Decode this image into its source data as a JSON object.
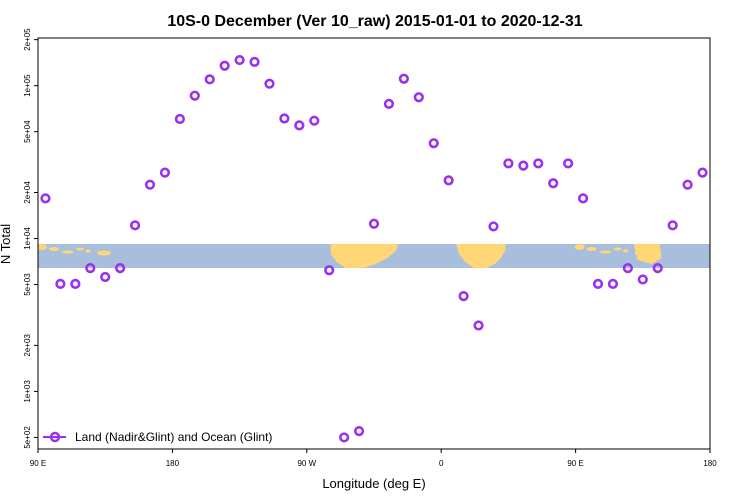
{
  "chart_data": {
    "type": "scatter",
    "title": "10S-0 December (Ver 10_raw)   2015-01-01 to 2020-12-31",
    "xlabel": "Longitude (deg E)",
    "ylabel": "N Total",
    "y_scale": "log",
    "grid": false,
    "legend_placement": "bottom-left",
    "xlim": [
      90,
      540
    ],
    "ylim": [
      420,
      205000
    ],
    "x_ticks": [
      {
        "value": 90,
        "label": "90 E"
      },
      {
        "value": 180,
        "label": "180"
      },
      {
        "value": 270,
        "label": "90 W"
      },
      {
        "value": 360,
        "label": "0"
      },
      {
        "value": 450,
        "label": "90 E"
      },
      {
        "value": 540,
        "label": "180"
      }
    ],
    "y_ticks": [
      {
        "value": 500,
        "label": "5e+02"
      },
      {
        "value": 1000,
        "label": "1e+03"
      },
      {
        "value": 2000,
        "label": "2e+03"
      },
      {
        "value": 5000,
        "label": "5e+03"
      },
      {
        "value": 10000,
        "label": "1e+04"
      },
      {
        "value": 20000,
        "label": "2e+04"
      },
      {
        "value": 50000,
        "label": "5e+04"
      },
      {
        "value": 100000,
        "label": "1e+05"
      },
      {
        "value": 200000,
        "label": "2e+05"
      }
    ],
    "series": [
      {
        "name": "Land (Nadir&Glint) and Ocean (Glint)",
        "color": "#9b30f0",
        "marker": "open-circle",
        "x": [
          95,
          105,
          115,
          125,
          135,
          145,
          155,
          165,
          175,
          185,
          195,
          205,
          215,
          225,
          235,
          245,
          255,
          265,
          275,
          285,
          295,
          305,
          315,
          325,
          335,
          345,
          355,
          365,
          375,
          385,
          395,
          405,
          415,
          425,
          435,
          445,
          455,
          465,
          475,
          485,
          495,
          505,
          515,
          525,
          535
        ],
        "y": [
          18300,
          5050,
          5050,
          6400,
          5600,
          6400,
          12200,
          22500,
          27000,
          60500,
          86000,
          110000,
          135000,
          147000,
          143000,
          103000,
          61000,
          55000,
          59000,
          6200,
          500,
          550,
          12500,
          76000,
          111000,
          84000,
          42000,
          24000,
          4200,
          2700,
          12000,
          31000,
          30000,
          31000,
          23000,
          31000,
          18300,
          5050,
          5050,
          6400,
          5400,
          6400,
          12200,
          22500,
          27000
        ]
      }
    ],
    "map_band": {
      "ocean_color": "#a7bedc",
      "land_color": "#ffd777"
    }
  }
}
